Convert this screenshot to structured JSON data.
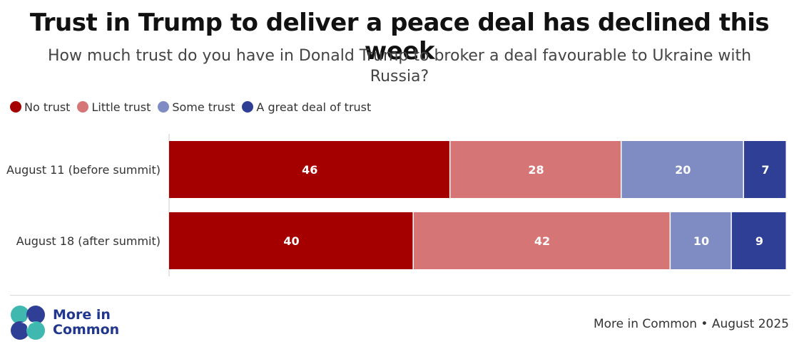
{
  "header": {
    "title": "Trust in Trump to deliver a peace deal has declined this week",
    "subtitle": "How much trust do you have in Donald Trump to broker a deal favourable to Ukraine with Russia?"
  },
  "footer": {
    "logo_line1": "More in",
    "logo_line2": "Common",
    "source": "More in Common • August 2025"
  },
  "colors": {
    "no_trust": "#a50000",
    "little_trust": "#d67575",
    "some_trust": "#7f8cc3",
    "great_deal": "#2f3f95"
  },
  "chart_data": {
    "type": "bar",
    "orientation": "horizontal",
    "stacked": true,
    "categories": [
      "August 11 (before summit)",
      "August 18 (after summit)"
    ],
    "series": [
      {
        "name": "No trust",
        "color": "#a50000",
        "values": [
          46,
          40
        ]
      },
      {
        "name": "Little trust",
        "color": "#d67575",
        "values": [
          28,
          42
        ]
      },
      {
        "name": "Some trust",
        "color": "#7f8cc3",
        "values": [
          20,
          10
        ]
      },
      {
        "name": "A great deal of trust",
        "color": "#2f3f95",
        "values": [
          7,
          9
        ]
      }
    ],
    "legend_position": "top-left",
    "data_labels": true,
    "grid": false
  }
}
